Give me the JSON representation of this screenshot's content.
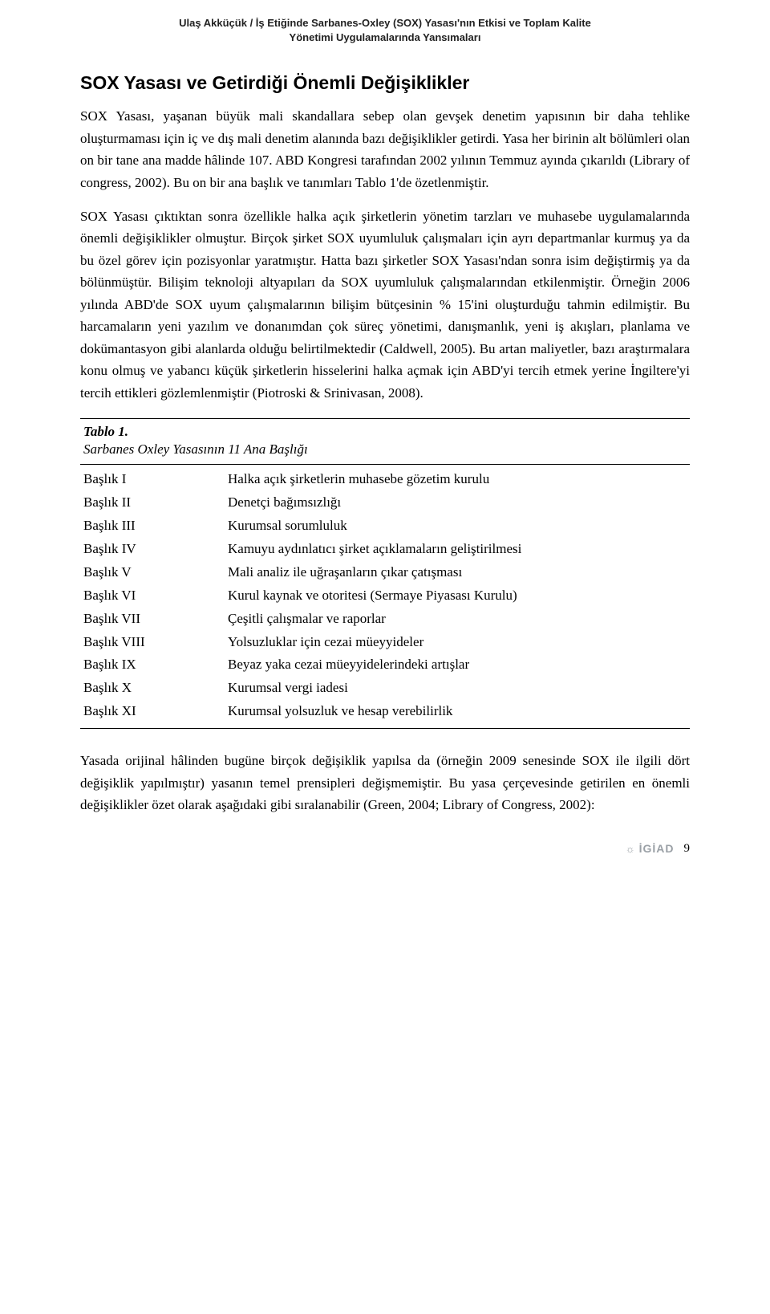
{
  "header": {
    "line1": "Ulaş Akküçük / İş Etiğinde Sarbanes-Oxley (SOX) Yasası'nın Etkisi ve Toplam Kalite",
    "line2": "Yönetimi Uygulamalarında Yansımaları"
  },
  "section_heading": "SOX Yasası ve Getirdiği Önemli Değişiklikler",
  "para1": "SOX Yasası, yaşanan büyük mali skandallara sebep olan gevşek denetim yapısının bir daha tehlike oluşturmaması için iç ve dış mali denetim alanında bazı değişiklikler getirdi. Yasa her birinin alt bölümleri olan on bir tane ana madde hâlinde 107. ABD Kongresi tarafından 2002 yılının Temmuz ayında çıkarıldı (Library of congress, 2002). Bu on bir ana başlık ve tanımları Tablo 1'de özetlenmiştir.",
  "para2": "SOX Yasası çıktıktan sonra özellikle halka açık şirketlerin yönetim tarzları ve muhasebe uygulamalarında önemli değişiklikler olmuştur. Birçok şirket SOX uyumluluk çalışmaları için ayrı departmanlar kurmuş ya da bu özel görev için pozisyonlar yaratmıştır. Hatta bazı şirketler SOX Yasası'ndan sonra isim değiştirmiş ya da bölünmüştür. Bilişim teknoloji altyapıları da SOX uyumluluk çalışmalarından etkilenmiştir. Örneğin 2006 yılında ABD'de SOX uyum çalışmalarının bilişim bütçesinin % 15'ini oluşturduğu tahmin edilmiştir. Bu harcamaların yeni yazılım ve donanımdan çok süreç yönetimi, danışmanlık, yeni iş akışları, planlama ve dokümantasyon gibi alanlarda olduğu belirtilmektedir (Caldwell, 2005). Bu artan maliyetler, bazı araştırmalara konu olmuş ve yabancı küçük şirketlerin hisselerini halka açmak için ABD'yi tercih etmek yerine İngiltere'yi tercih ettikleri gözlemlenmiştir (Piotroski & Srinivasan, 2008).",
  "table": {
    "title": "Tablo 1.",
    "subtitle": "Sarbanes Oxley Yasasının 11 Ana Başlığı",
    "rows": [
      {
        "c1": "Başlık I",
        "c2": "Halka açık şirketlerin muhasebe gözetim kurulu"
      },
      {
        "c1": "Başlık II",
        "c2": "Denetçi bağımsızlığı"
      },
      {
        "c1": "Başlık III",
        "c2": "Kurumsal sorumluluk"
      },
      {
        "c1": "Başlık IV",
        "c2": "Kamuyu aydınlatıcı şirket açıklamaların geliştirilmesi"
      },
      {
        "c1": "Başlık V",
        "c2": "Mali analiz ile uğraşanların çıkar çatışması"
      },
      {
        "c1": "Başlık VI",
        "c2": "Kurul kaynak ve otoritesi (Sermaye Piyasası Kurulu)"
      },
      {
        "c1": "Başlık VII",
        "c2": "Çeşitli çalışmalar ve raporlar"
      },
      {
        "c1": "Başlık VIII",
        "c2": "Yolsuzluklar için cezai müeyyideler"
      },
      {
        "c1": "Başlık IX",
        "c2": "Beyaz yaka cezai müeyyidelerindeki artışlar"
      },
      {
        "c1": "Başlık X",
        "c2": "Kurumsal vergi iadesi"
      },
      {
        "c1": "Başlık XI",
        "c2": "Kurumsal yolsuzluk ve hesap verebilirlik"
      }
    ]
  },
  "para3": "Yasada orijinal hâlinden bugüne birçok değişiklik yapılsa da (örneğin 2009 senesinde SOX ile ilgili dört değişiklik yapılmıştır) yasanın temel prensipleri değişmemiştir. Bu yasa çerçevesinde getirilen en önemli değişiklikler özet olarak aşağıdaki gibi sıralanabilir (Green, 2004; Library of Congress, 2002):",
  "footer": {
    "logo": "İGİAD",
    "page": "9"
  }
}
